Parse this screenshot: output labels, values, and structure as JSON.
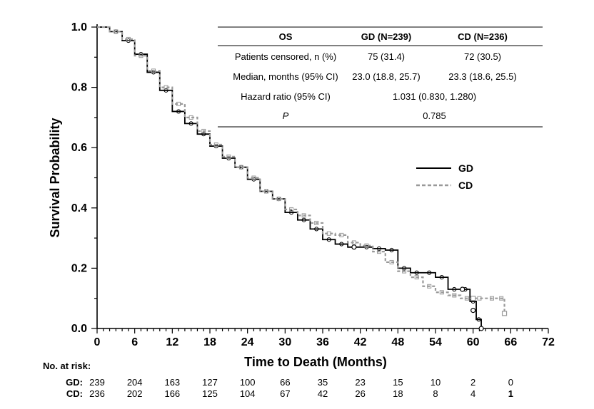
{
  "chart_data": {
    "type": "line",
    "xlabel": "Time to Death (Months)",
    "ylabel": "Survival Probability",
    "xlim": [
      0,
      72
    ],
    "ylim": [
      0,
      1.0
    ],
    "x_ticks": [
      "0",
      "6",
      "12",
      "18",
      "24",
      "30",
      "36",
      "42",
      "48",
      "54",
      "60",
      "66",
      "72"
    ],
    "y_ticks": [
      "0.0",
      "0.2",
      "0.4",
      "0.6",
      "0.8",
      "1.0"
    ],
    "grid": false,
    "legend_position": "right",
    "series": [
      {
        "name": "GD",
        "color": "#000000",
        "style": "solid",
        "x": [
          0,
          2,
          4,
          6,
          8,
          10,
          12,
          14,
          16,
          18,
          20,
          22,
          24,
          26,
          28,
          30,
          32,
          34,
          36,
          38,
          40,
          42,
          44,
          46,
          48,
          50,
          52,
          54,
          56,
          58,
          59.5,
          60.5,
          61.3
        ],
        "y": [
          1.0,
          0.985,
          0.955,
          0.91,
          0.85,
          0.79,
          0.72,
          0.68,
          0.645,
          0.605,
          0.565,
          0.535,
          0.495,
          0.455,
          0.43,
          0.385,
          0.36,
          0.33,
          0.295,
          0.28,
          0.27,
          0.27,
          0.265,
          0.26,
          0.2,
          0.185,
          0.185,
          0.17,
          0.13,
          0.13,
          0.09,
          0.03,
          0.0
        ]
      },
      {
        "name": "CD",
        "color": "#999999",
        "style": "dashed",
        "x": [
          0,
          2,
          4,
          6,
          8,
          10,
          12,
          14,
          16,
          18,
          20,
          22,
          24,
          26,
          28,
          30,
          32,
          34,
          36,
          38,
          40,
          42,
          44,
          46,
          48,
          50,
          52,
          54,
          56,
          58,
          60,
          62,
          64,
          65
        ],
        "y": [
          1.0,
          0.985,
          0.96,
          0.905,
          0.855,
          0.8,
          0.745,
          0.7,
          0.655,
          0.61,
          0.57,
          0.535,
          0.5,
          0.455,
          0.43,
          0.395,
          0.375,
          0.35,
          0.315,
          0.31,
          0.285,
          0.275,
          0.255,
          0.22,
          0.19,
          0.17,
          0.14,
          0.12,
          0.11,
          0.1,
          0.1,
          0.1,
          0.1,
          0.05
        ]
      }
    ],
    "censor_markers": {
      "GD": [
        [
          41,
          0.27
        ],
        [
          58.3,
          0.13
        ],
        [
          60,
          0.06
        ],
        [
          61.3,
          0.0
        ]
      ],
      "CD": [
        [
          60,
          0.1
        ],
        [
          65,
          0.05
        ]
      ]
    },
    "stats_table": {
      "headers": [
        "OS",
        "GD (N=239)",
        "CD (N=236)"
      ],
      "rows": [
        {
          "label": "Patients censored, n (%)",
          "gd": "75 (31.4)",
          "cd": "72 (30.5)",
          "italic": false
        },
        {
          "label": "Median, months (95% CI)",
          "gd": "23.0 (18.8, 25.7)",
          "cd": "23.3 (18.6, 25.5)",
          "italic": false
        },
        {
          "label": "Hazard ratio (95% CI)",
          "span": "1.031 (0.830, 1.280)",
          "italic": false
        },
        {
          "label": "P",
          "span": "0.785",
          "italic": true
        }
      ]
    },
    "risk_table": {
      "title": "No. at risk:",
      "times": [
        0,
        6,
        12,
        18,
        24,
        30,
        36,
        42,
        48,
        54,
        60,
        66
      ],
      "rows": [
        {
          "label": "GD:",
          "values": [
            "239",
            "204",
            "163",
            "127",
            "100",
            "66",
            "35",
            "23",
            "15",
            "10",
            "2",
            "0"
          ]
        },
        {
          "label": "CD:",
          "values": [
            "236",
            "202",
            "166",
            "125",
            "104",
            "67",
            "42",
            "26",
            "18",
            "8",
            "4",
            "1"
          ]
        }
      ]
    }
  }
}
